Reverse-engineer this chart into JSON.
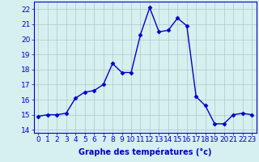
{
  "x": [
    0,
    1,
    2,
    3,
    4,
    5,
    6,
    7,
    8,
    9,
    10,
    11,
    12,
    13,
    14,
    15,
    16,
    17,
    18,
    19,
    20,
    21,
    22,
    23
  ],
  "y": [
    14.9,
    15.0,
    15.0,
    15.1,
    16.1,
    16.5,
    16.6,
    17.0,
    18.4,
    17.8,
    17.8,
    20.3,
    22.1,
    20.5,
    20.6,
    21.4,
    20.9,
    16.2,
    15.6,
    14.4,
    14.4,
    15.0,
    15.1,
    15.0
  ],
  "line_color": "#0000cc",
  "marker": "D",
  "markersize": 2.5,
  "linewidth": 1.0,
  "xlabel": "Graphe des températures (°c)",
  "ylim": [
    13.8,
    22.5
  ],
  "xlim": [
    -0.5,
    23.5
  ],
  "yticks": [
    14,
    15,
    16,
    17,
    18,
    19,
    20,
    21,
    22
  ],
  "xticks": [
    0,
    1,
    2,
    3,
    4,
    5,
    6,
    7,
    8,
    9,
    10,
    11,
    12,
    13,
    14,
    15,
    16,
    17,
    18,
    19,
    20,
    21,
    22,
    23
  ],
  "bg_color": "#d5f0ef",
  "grid_color": "#b0c8c8",
  "axis_color": "#0000cc",
  "tick_color": "#0000cc",
  "xlabel_color": "#0000cc",
  "xlabel_fontsize": 7,
  "tick_fontsize": 6.5
}
